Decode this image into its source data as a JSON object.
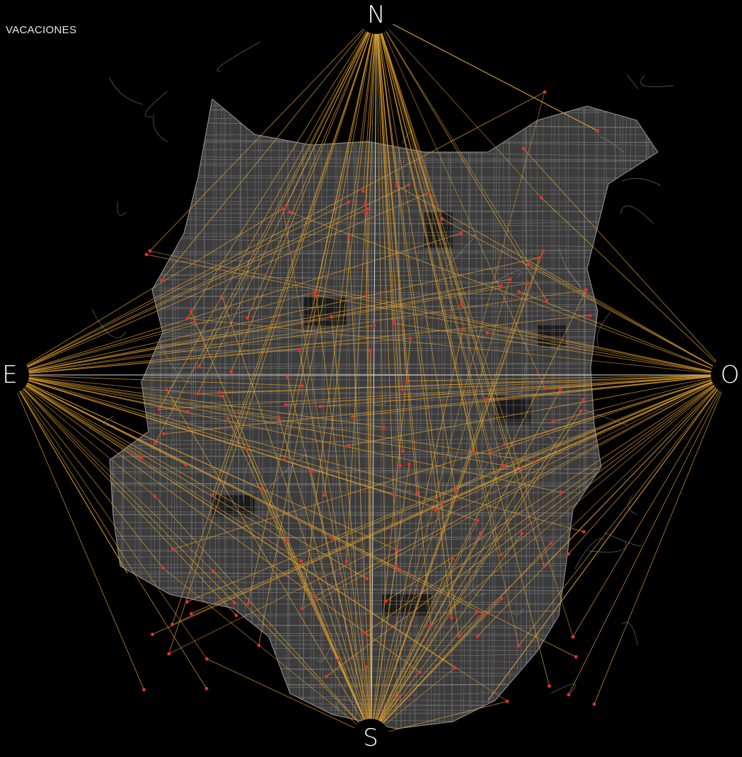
{
  "title": "VACACIONES",
  "compass": {
    "north": "N",
    "east": "E",
    "west": "O",
    "south": "S"
  },
  "colors": {
    "background": "#000000",
    "streets": "#8c8c8c",
    "urban_fill": "#6e6e6e",
    "connection_lines": "#e2a22e",
    "points": "#e8312f",
    "axes": "#d8d8d8"
  }
}
